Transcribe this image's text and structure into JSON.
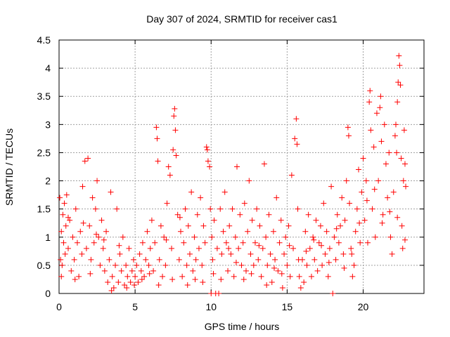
{
  "chart_data": {
    "type": "scatter",
    "title": "Day 307 of 2024, SRMTID for receiver cas1",
    "xlabel": "GPS time / hours",
    "ylabel": "SRMTID / TECUs",
    "xlim": [
      0,
      24
    ],
    "ylim": [
      0,
      4.5
    ],
    "x_ticks": [
      0,
      5,
      10,
      15,
      20
    ],
    "x_tick_labels": [
      "0",
      "5",
      "10",
      "15",
      "20"
    ],
    "y_ticks": [
      0,
      0.5,
      1,
      1.5,
      2,
      2.5,
      3,
      3.5,
      4,
      4.5
    ],
    "y_tick_labels": [
      "0",
      "0.5",
      "1",
      "1.5",
      "2",
      "2.5",
      "3",
      "3.5",
      "4",
      "4.5"
    ],
    "grid": true,
    "marker": "plus",
    "color": "#ff0000",
    "series": [
      {
        "name": "SRMTID",
        "points": [
          [
            0.05,
            1.7
          ],
          [
            0.1,
            0.6
          ],
          [
            0.15,
            1.1
          ],
          [
            0.2,
            0.5
          ],
          [
            0.25,
            1.4
          ],
          [
            0.3,
            0.9
          ],
          [
            0.35,
            1.6
          ],
          [
            0.4,
            0.7
          ],
          [
            0.45,
            1.2
          ],
          [
            0.5,
            1.75
          ],
          [
            0.6,
            0.8
          ],
          [
            0.7,
            1.3
          ],
          [
            0.8,
            0.4
          ],
          [
            0.9,
            1.0
          ],
          [
            1.0,
            0.6
          ],
          [
            1.1,
            1.5
          ],
          [
            1.2,
            0.9
          ],
          [
            1.3,
            0.3
          ],
          [
            1.4,
            1.1
          ],
          [
            1.5,
            0.7
          ],
          [
            1.6,
            1.25
          ],
          [
            1.7,
            2.35
          ],
          [
            1.8,
            0.8
          ],
          [
            1.9,
            2.4
          ],
          [
            2.0,
            1.2
          ],
          [
            2.1,
            0.6
          ],
          [
            2.2,
            1.7
          ],
          [
            2.3,
            0.9
          ],
          [
            2.4,
            1.5
          ],
          [
            2.5,
            2.0
          ],
          [
            2.6,
            1.0
          ],
          [
            2.7,
            0.5
          ],
          [
            2.8,
            1.3
          ],
          [
            2.9,
            0.8
          ],
          [
            3.0,
            0.4
          ],
          [
            3.1,
            1.1
          ],
          [
            3.2,
            0.2
          ],
          [
            3.3,
            0.6
          ],
          [
            3.4,
            1.8
          ],
          [
            3.5,
            0.3
          ],
          [
            3.6,
            0.1
          ],
          [
            3.7,
            0.5
          ],
          [
            3.8,
            1.5
          ],
          [
            3.9,
            0.2
          ],
          [
            4.0,
            0.7
          ],
          [
            4.1,
            0.4
          ],
          [
            4.2,
            1.0
          ],
          [
            4.3,
            0.15
          ],
          [
            4.4,
            0.5
          ],
          [
            4.5,
            0.3
          ],
          [
            4.6,
            0.8
          ],
          [
            4.7,
            0.2
          ],
          [
            4.8,
            0.4
          ],
          [
            4.9,
            0.6
          ],
          [
            5.0,
            0.3
          ],
          [
            5.1,
            0.5
          ],
          [
            5.2,
            0.2
          ],
          [
            5.3,
            0.7
          ],
          [
            5.4,
            0.4
          ],
          [
            5.5,
            0.9
          ],
          [
            5.6,
            0.3
          ],
          [
            5.7,
            0.6
          ],
          [
            5.8,
            1.1
          ],
          [
            5.9,
            0.5
          ],
          [
            6.0,
            0.8
          ],
          [
            6.1,
            1.3
          ],
          [
            6.2,
            0.4
          ],
          [
            6.3,
            0.9
          ],
          [
            6.4,
            2.95
          ],
          [
            6.45,
            2.75
          ],
          [
            6.5,
            2.35
          ],
          [
            6.6,
            0.6
          ],
          [
            6.7,
            1.2
          ],
          [
            6.8,
            0.3
          ],
          [
            6.9,
            1.0
          ],
          [
            7.0,
            0.5
          ],
          [
            7.1,
            1.6
          ],
          [
            7.2,
            2.25
          ],
          [
            7.3,
            2.1
          ],
          [
            7.4,
            0.8
          ],
          [
            7.5,
            2.55
          ],
          [
            7.55,
            3.15
          ],
          [
            7.6,
            3.28
          ],
          [
            7.65,
            2.9
          ],
          [
            7.7,
            2.45
          ],
          [
            7.8,
            1.4
          ],
          [
            7.9,
            0.6
          ],
          [
            8.0,
            1.1
          ],
          [
            8.1,
            0.3
          ],
          [
            8.2,
            0.9
          ],
          [
            8.3,
            1.5
          ],
          [
            8.4,
            0.5
          ],
          [
            8.5,
            1.2
          ],
          [
            8.6,
            0.7
          ],
          [
            8.7,
            1.8
          ],
          [
            8.8,
            0.4
          ],
          [
            8.9,
            1.0
          ],
          [
            9.0,
            0.6
          ],
          [
            9.1,
            1.4
          ],
          [
            9.2,
            0.8
          ],
          [
            9.3,
            1.7
          ],
          [
            9.4,
            0.5
          ],
          [
            9.5,
            1.2
          ],
          [
            9.6,
            0.9
          ],
          [
            9.7,
            2.6
          ],
          [
            9.75,
            2.55
          ],
          [
            9.8,
            2.35
          ],
          [
            9.9,
            2.25
          ],
          [
            9.95,
            1.5
          ],
          [
            10.0,
            0.0
          ],
          [
            10.05,
            1.0
          ],
          [
            10.1,
            0.6
          ],
          [
            10.2,
            1.3
          ],
          [
            10.3,
            0.0
          ],
          [
            10.4,
            0.8
          ],
          [
            10.5,
            0.0
          ],
          [
            10.6,
            1.5
          ],
          [
            10.7,
            0.7
          ],
          [
            10.8,
            1.1
          ],
          [
            10.9,
            1.8
          ],
          [
            11.0,
            0.9
          ],
          [
            11.1,
            0.4
          ],
          [
            11.2,
            1.2
          ],
          [
            11.3,
            0.7
          ],
          [
            11.4,
            1.5
          ],
          [
            11.5,
            0.3
          ],
          [
            11.6,
            1.0
          ],
          [
            11.7,
            2.25
          ],
          [
            11.8,
            0.8
          ],
          [
            11.9,
            1.4
          ],
          [
            12.0,
            0.5
          ],
          [
            12.1,
            0.9
          ],
          [
            12.2,
            1.6
          ],
          [
            12.3,
            0.4
          ],
          [
            12.4,
            1.1
          ],
          [
            12.5,
            2.0
          ],
          [
            12.6,
            0.7
          ],
          [
            12.7,
            1.3
          ],
          [
            12.8,
            0.5
          ],
          [
            12.9,
            0.9
          ],
          [
            13.0,
            1.5
          ],
          [
            13.1,
            0.6
          ],
          [
            13.2,
            1.2
          ],
          [
            13.3,
            0.3
          ],
          [
            13.4,
            0.8
          ],
          [
            13.5,
            2.3
          ],
          [
            13.6,
            1.0
          ],
          [
            13.7,
            0.5
          ],
          [
            13.8,
            1.4
          ],
          [
            13.9,
            0.7
          ],
          [
            14.0,
            0.2
          ],
          [
            14.1,
            1.1
          ],
          [
            14.2,
            0.6
          ],
          [
            14.3,
            1.7
          ],
          [
            14.4,
            0.4
          ],
          [
            14.5,
            0.9
          ],
          [
            14.6,
            1.3
          ],
          [
            14.7,
            0.1
          ],
          [
            14.8,
            0.7
          ],
          [
            14.9,
            1.0
          ],
          [
            15.0,
            0.5
          ],
          [
            15.1,
            1.2
          ],
          [
            15.2,
            0.3
          ],
          [
            15.3,
            2.1
          ],
          [
            15.4,
            0.8
          ],
          [
            15.5,
            2.75
          ],
          [
            15.6,
            3.1
          ],
          [
            15.65,
            2.65
          ],
          [
            15.7,
            1.5
          ],
          [
            15.8,
            0.3
          ],
          [
            15.9,
            0.1
          ],
          [
            16.0,
            0.6
          ],
          [
            16.1,
            0.2
          ],
          [
            16.2,
            1.1
          ],
          [
            16.3,
            0.5
          ],
          [
            16.4,
            1.4
          ],
          [
            16.5,
            0.8
          ],
          [
            16.6,
            0.3
          ],
          [
            16.7,
            1.0
          ],
          [
            16.8,
            0.6
          ],
          [
            16.9,
            1.3
          ],
          [
            17.0,
            0.4
          ],
          [
            17.1,
            0.9
          ],
          [
            17.2,
            1.2
          ],
          [
            17.3,
            0.5
          ],
          [
            17.4,
            1.6
          ],
          [
            17.5,
            0.7
          ],
          [
            17.6,
            1.1
          ],
          [
            17.7,
            0.3
          ],
          [
            17.8,
            0.8
          ],
          [
            17.9,
            1.9
          ],
          [
            18.0,
            0.0
          ],
          [
            18.1,
            1.0
          ],
          [
            18.2,
            0.6
          ],
          [
            18.3,
            1.4
          ],
          [
            18.4,
            0.9
          ],
          [
            18.5,
            1.2
          ],
          [
            18.6,
            1.7
          ],
          [
            18.7,
            0.7
          ],
          [
            18.8,
            1.3
          ],
          [
            18.9,
            2.0
          ],
          [
            19.0,
            2.95
          ],
          [
            19.05,
            2.8
          ],
          [
            19.1,
            1.6
          ],
          [
            19.2,
            0.8
          ],
          [
            19.3,
            0.3
          ],
          [
            19.4,
            0.5
          ],
          [
            19.5,
            1.1
          ],
          [
            19.6,
            1.5
          ],
          [
            19.7,
            2.2
          ],
          [
            19.8,
            0.9
          ],
          [
            19.9,
            1.8
          ],
          [
            20.0,
            2.4
          ],
          [
            20.1,
            1.3
          ],
          [
            20.2,
            2.0
          ],
          [
            20.3,
            0.9
          ],
          [
            20.4,
            3.4
          ],
          [
            20.45,
            3.6
          ],
          [
            20.5,
            2.9
          ],
          [
            20.6,
            1.5
          ],
          [
            20.7,
            2.6
          ],
          [
            20.8,
            1.0
          ],
          [
            20.9,
            3.2
          ],
          [
            21.0,
            2.0
          ],
          [
            21.1,
            3.3
          ],
          [
            21.15,
            3.5
          ],
          [
            21.2,
            2.7
          ],
          [
            21.3,
            1.4
          ],
          [
            21.4,
            3.0
          ],
          [
            21.5,
            2.3
          ],
          [
            21.6,
            1.7
          ],
          [
            21.7,
            2.5
          ],
          [
            21.8,
            1.0
          ],
          [
            21.9,
            0.7
          ],
          [
            22.0,
            1.8
          ],
          [
            22.1,
            2.8
          ],
          [
            22.15,
            3.0
          ],
          [
            22.2,
            2.5
          ],
          [
            22.25,
            3.4
          ],
          [
            22.3,
            3.75
          ],
          [
            22.35,
            4.22
          ],
          [
            22.4,
            4.05
          ],
          [
            22.45,
            3.7
          ],
          [
            22.5,
            2.4
          ],
          [
            22.55,
            1.2
          ],
          [
            22.6,
            0.8
          ],
          [
            22.65,
            2.0
          ],
          [
            22.7,
            2.9
          ],
          [
            22.75,
            2.3
          ],
          [
            22.8,
            1.9
          ],
          [
            0.15,
            0.3
          ],
          [
            0.6,
            1.35
          ],
          [
            1.05,
            0.25
          ],
          [
            1.55,
            1.9
          ],
          [
            2.05,
            0.35
          ],
          [
            2.45,
            1.05
          ],
          [
            2.95,
            0.95
          ],
          [
            3.45,
            0.05
          ],
          [
            3.95,
            0.85
          ],
          [
            4.45,
            0.1
          ],
          [
            4.95,
            0.15
          ],
          [
            5.45,
            0.25
          ],
          [
            5.95,
            0.35
          ],
          [
            6.55,
            0.15
          ],
          [
            7.05,
            0.95
          ],
          [
            7.45,
            0.25
          ],
          [
            7.95,
            1.35
          ],
          [
            8.45,
            0.15
          ],
          [
            8.95,
            0.25
          ],
          [
            9.45,
            0.2
          ],
          [
            10.15,
            0.35
          ],
          [
            10.65,
            0.25
          ],
          [
            11.15,
            0.8
          ],
          [
            11.65,
            0.55
          ],
          [
            12.15,
            0.25
          ],
          [
            12.65,
            0.35
          ],
          [
            13.15,
            0.85
          ],
          [
            13.65,
            0.15
          ],
          [
            14.15,
            0.45
          ],
          [
            14.65,
            0.35
          ],
          [
            15.15,
            0.85
          ],
          [
            15.75,
            0.6
          ],
          [
            16.25,
            0.75
          ],
          [
            16.75,
            0.95
          ],
          [
            17.25,
            0.85
          ],
          [
            17.75,
            0.55
          ],
          [
            18.25,
            1.15
          ],
          [
            18.75,
            0.45
          ],
          [
            19.25,
            0.7
          ],
          [
            19.75,
            1.25
          ],
          [
            20.25,
            1.65
          ],
          [
            20.75,
            1.85
          ],
          [
            21.25,
            1.25
          ],
          [
            21.75,
            1.45
          ],
          [
            22.25,
            1.35
          ],
          [
            22.75,
            0.95
          ]
        ]
      }
    ]
  }
}
